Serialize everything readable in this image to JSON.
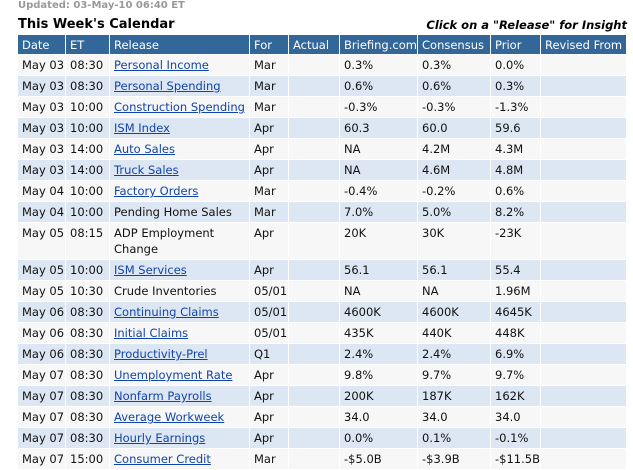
{
  "updated": "Updated: 03-May-10 06:40 ET",
  "title": "This Week's Calendar",
  "insight_text": "Click on a \"Release\" for Insight",
  "columns": [
    "Date",
    "ET",
    "Release",
    "For",
    "Actual",
    "Briefing.com",
    "Consensus",
    "Prior",
    "Revised From"
  ],
  "rows": [
    {
      "date": "May 03",
      "et": "08:30",
      "release": "Personal Income",
      "link": true,
      "for": "Mar",
      "actual": "",
      "briefing": "0.3%",
      "consensus": "0.3%",
      "prior": "0.0%",
      "revised": ""
    },
    {
      "date": "May 03",
      "et": "08:30",
      "release": "Personal Spending",
      "link": true,
      "for": "Mar",
      "actual": "",
      "briefing": "0.6%",
      "consensus": "0.6%",
      "prior": "0.3%",
      "revised": ""
    },
    {
      "date": "May 03",
      "et": "10:00",
      "release": "Construction Spending",
      "link": true,
      "for": "Mar",
      "actual": "",
      "briefing": "-0.3%",
      "consensus": "-0.3%",
      "prior": "-1.3%",
      "revised": ""
    },
    {
      "date": "May 03",
      "et": "10:00",
      "release": "ISM Index",
      "link": true,
      "for": "Apr",
      "actual": "",
      "briefing": "60.3",
      "consensus": "60.0",
      "prior": "59.6",
      "revised": ""
    },
    {
      "date": "May 03",
      "et": "14:00",
      "release": "Auto Sales",
      "link": true,
      "for": "Apr",
      "actual": "",
      "briefing": "NA",
      "consensus": "4.2M",
      "prior": "4.3M",
      "revised": ""
    },
    {
      "date": "May 03",
      "et": "14:00",
      "release": "Truck Sales",
      "link": true,
      "for": "Apr",
      "actual": "",
      "briefing": "NA",
      "consensus": "4.6M",
      "prior": "4.8M",
      "revised": ""
    },
    {
      "date": "May 04",
      "et": "10:00",
      "release": "Factory Orders",
      "link": true,
      "for": "Mar",
      "actual": "",
      "briefing": "-0.4%",
      "consensus": "-0.2%",
      "prior": "0.6%",
      "revised": ""
    },
    {
      "date": "May 04",
      "et": "10:00",
      "release": "Pending Home Sales",
      "link": false,
      "for": "Mar",
      "actual": "",
      "briefing": "7.0%",
      "consensus": "5.0%",
      "prior": "8.2%",
      "revised": ""
    },
    {
      "date": "May 05",
      "et": "08:15",
      "release": "ADP Employment Change",
      "link": false,
      "for": "Apr",
      "actual": "",
      "briefing": "20K",
      "consensus": "30K",
      "prior": "-23K",
      "revised": ""
    },
    {
      "date": "May 05",
      "et": "10:00",
      "release": "ISM Services",
      "link": true,
      "for": "Apr",
      "actual": "",
      "briefing": "56.1",
      "consensus": "56.1",
      "prior": "55.4",
      "revised": ""
    },
    {
      "date": "May 05",
      "et": "10:30",
      "release": "Crude Inventories",
      "link": false,
      "for": "05/01",
      "actual": "",
      "briefing": "NA",
      "consensus": "NA",
      "prior": "1.96M",
      "revised": ""
    },
    {
      "date": "May 06",
      "et": "08:30",
      "release": "Continuing Claims",
      "link": true,
      "for": "05/01",
      "actual": "",
      "briefing": "4600K",
      "consensus": "4600K",
      "prior": "4645K",
      "revised": ""
    },
    {
      "date": "May 06",
      "et": "08:30",
      "release": "Initial Claims",
      "link": true,
      "for": "05/01",
      "actual": "",
      "briefing": "435K",
      "consensus": "440K",
      "prior": "448K",
      "revised": ""
    },
    {
      "date": "May 06",
      "et": "08:30",
      "release": "Productivity-Prel",
      "link": true,
      "for": "Q1",
      "actual": "",
      "briefing": "2.4%",
      "consensus": "2.4%",
      "prior": "6.9%",
      "revised": ""
    },
    {
      "date": "May 07",
      "et": "08:30",
      "release": "Unemployment Rate",
      "link": true,
      "for": "Apr",
      "actual": "",
      "briefing": "9.8%",
      "consensus": "9.7%",
      "prior": "9.7%",
      "revised": ""
    },
    {
      "date": "May 07",
      "et": "08:30",
      "release": "Nonfarm Payrolls",
      "link": true,
      "for": "Apr",
      "actual": "",
      "briefing": "200K",
      "consensus": "187K",
      "prior": "162K",
      "revised": ""
    },
    {
      "date": "May 07",
      "et": "08:30",
      "release": "Average Workweek",
      "link": true,
      "for": "Apr",
      "actual": "",
      "briefing": "34.0",
      "consensus": "34.0",
      "prior": "34.0",
      "revised": ""
    },
    {
      "date": "May 07",
      "et": "08:30",
      "release": "Hourly Earnings",
      "link": true,
      "for": "Apr",
      "actual": "",
      "briefing": "0.0%",
      "consensus": "0.1%",
      "prior": "-0.1%",
      "revised": ""
    },
    {
      "date": "May 07",
      "et": "15:00",
      "release": "Consumer Credit",
      "link": true,
      "for": "Mar",
      "actual": "",
      "briefing": "-$5.0B",
      "consensus": "-$3.9B",
      "prior": "-$11.5B",
      "revised": ""
    }
  ],
  "colors": {
    "header_bg": "#336699",
    "header_text": "#ffffff",
    "row_even": "#dde7f3",
    "row_odd": "#f7f7f7",
    "link": "#1144aa",
    "updated_text": "#999999"
  }
}
